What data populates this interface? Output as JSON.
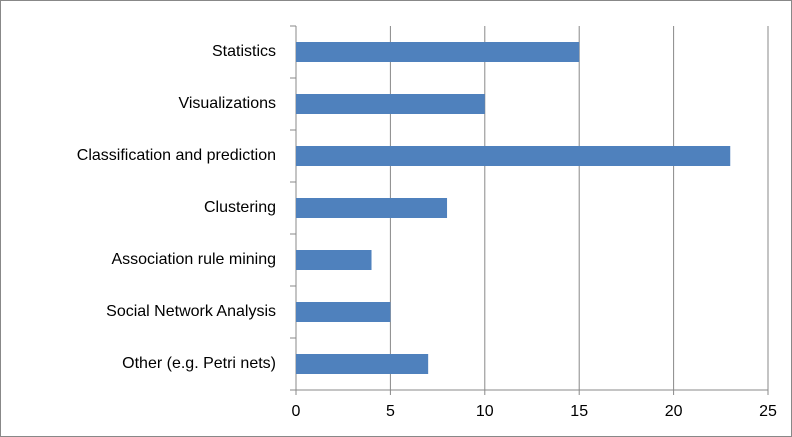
{
  "chart_data": {
    "type": "bar",
    "orientation": "horizontal",
    "categories": [
      "Statistics",
      "Visualizations",
      "Classification and prediction",
      "Clustering",
      "Association rule mining",
      "Social Network Analysis",
      "Other (e.g. Petri nets)"
    ],
    "values": [
      15,
      10,
      23,
      8,
      4,
      5,
      7
    ],
    "color": "#4f81bd",
    "xlim": [
      0,
      25
    ],
    "xticks": [
      0,
      5,
      10,
      15,
      20,
      25
    ],
    "grid": true
  }
}
